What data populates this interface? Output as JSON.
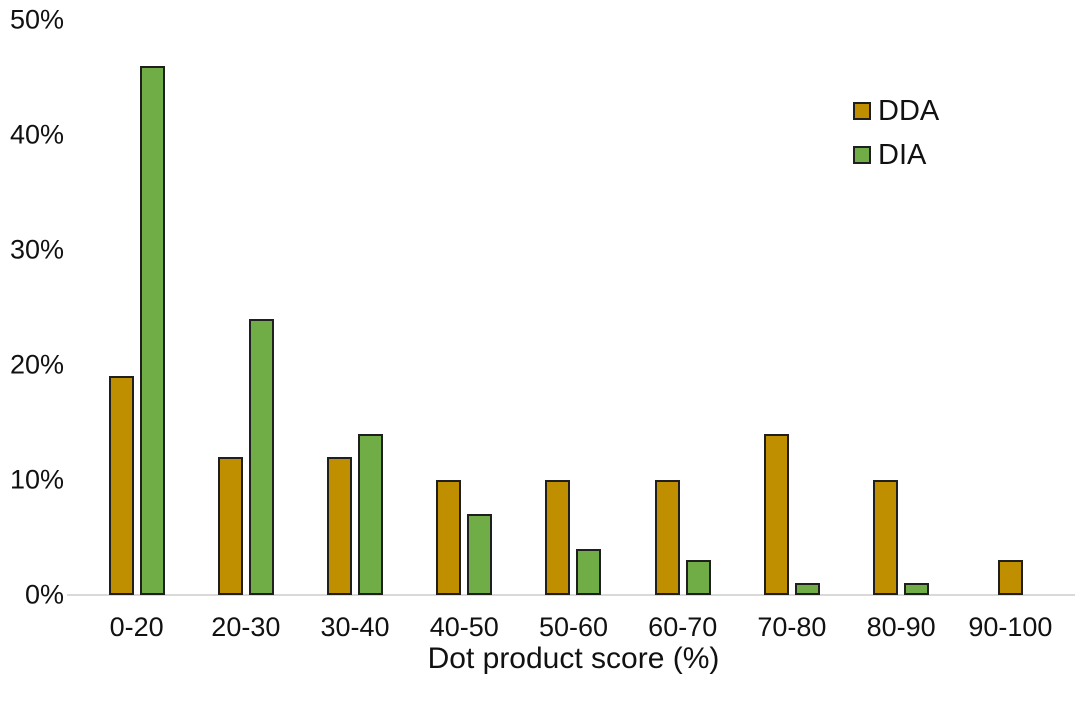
{
  "chart_data": {
    "type": "bar",
    "title": "",
    "xlabel": "Dot product score (%)",
    "ylabel": "",
    "categories": [
      "0-20",
      "20-30",
      "30-40",
      "40-50",
      "50-60",
      "60-70",
      "70-80",
      "80-90",
      "90-100"
    ],
    "series": [
      {
        "name": "DDA",
        "color": "#BF8F00",
        "values": [
          19,
          12,
          12,
          10,
          10,
          10,
          14,
          10,
          3
        ]
      },
      {
        "name": "DIA",
        "color": "#70AD47",
        "values": [
          46,
          24,
          14,
          7,
          4,
          3,
          1,
          1,
          0
        ]
      }
    ],
    "ylim": [
      0,
      50
    ],
    "ytick_step": 10,
    "ytick_labels": [
      "0%",
      "10%",
      "20%",
      "30%",
      "40%",
      "50%"
    ],
    "grid": false,
    "legend_position": "top-right",
    "bar_border_color": "#1f1f1f",
    "axis_line_color": "#d9d9d9",
    "background_color": "#ffffff"
  }
}
